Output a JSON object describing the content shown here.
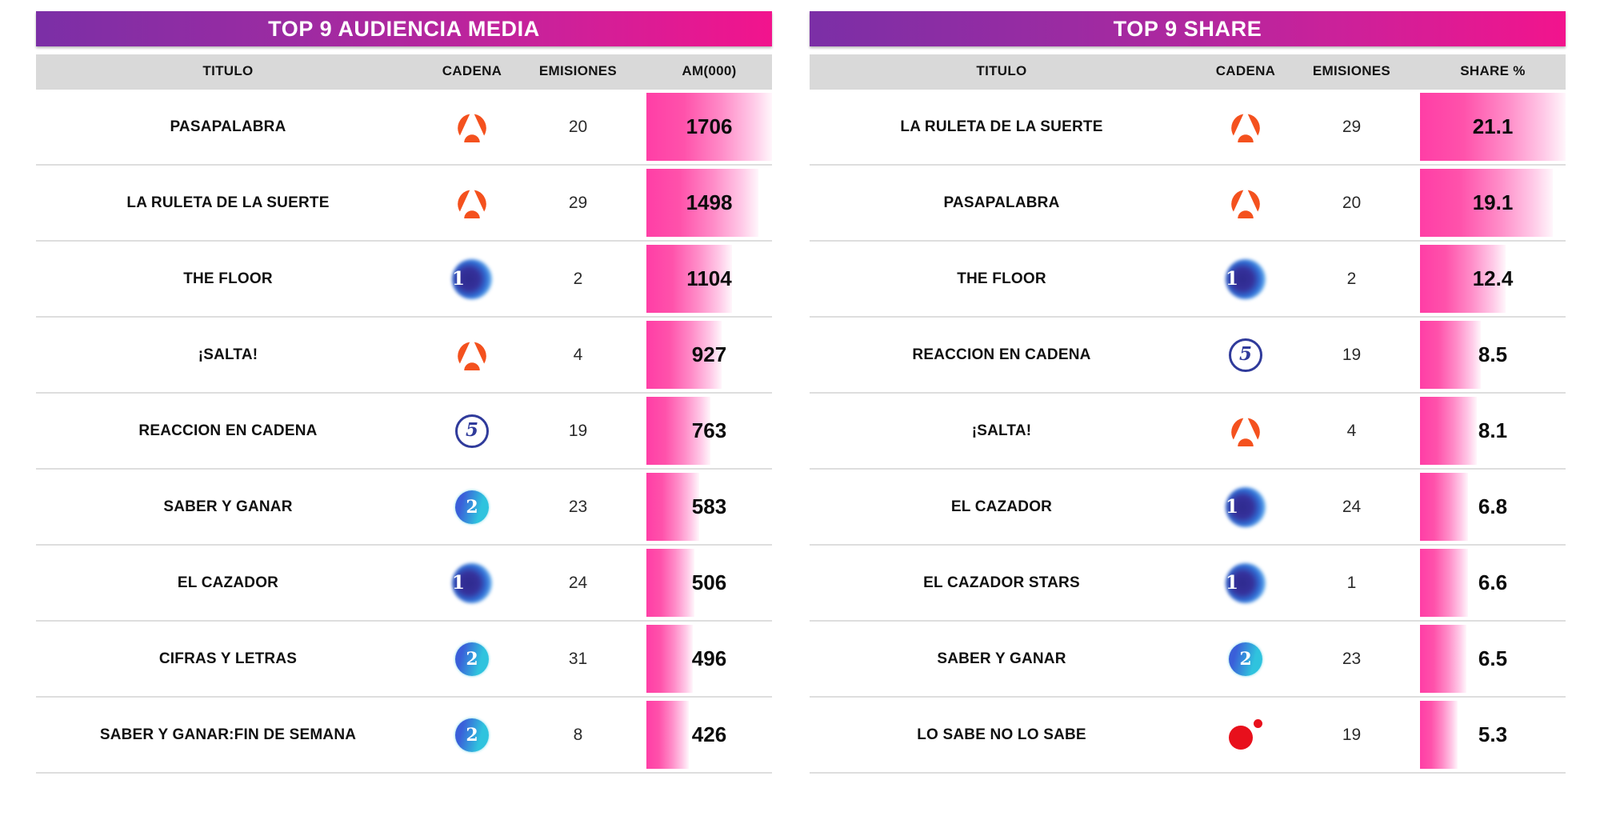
{
  "colors": {
    "header_gradient_start": "#7B2FA6",
    "header_gradient_end": "#F2148D",
    "column_header_bg": "#D9D9D9",
    "bar_pink": "#FF3EA6",
    "bar_fade": "#FFF6FB",
    "row_line": "#DEDEDE",
    "antena3_orange": "#F4511E",
    "telecinco_navy": "#303B9B",
    "la1_blue": "#2F6FD6",
    "la2_cyan": "#2FC3DE",
    "reddot_red": "#E8101C"
  },
  "channels": {
    "antena3": "Antena 3",
    "la1": "La 1",
    "telecinco": "Telecinco",
    "la2": "La 2",
    "reddot": "Red dot channel"
  },
  "tables": [
    {
      "title": "TOP 9 AUDIENCIA MEDIA",
      "columns": {
        "titulo": "TITULO",
        "cadena": "CADENA",
        "emisiones": "EMISIONES",
        "valor": "AM(000)"
      },
      "rows": [
        {
          "titulo": "PASAPALABRA",
          "cadena": "antena3",
          "emisiones": "20",
          "valor": "1706",
          "bar_pct": 100
        },
        {
          "titulo": "LA RULETA DE LA SUERTE",
          "cadena": "antena3",
          "emisiones": "29",
          "valor": "1498",
          "bar_pct": 89
        },
        {
          "titulo": "THE FLOOR",
          "cadena": "la1",
          "emisiones": "2",
          "valor": "1104",
          "bar_pct": 68
        },
        {
          "titulo": "¡SALTA!",
          "cadena": "antena3",
          "emisiones": "4",
          "valor": "927",
          "bar_pct": 60
        },
        {
          "titulo": "REACCION EN CADENA",
          "cadena": "telecinco",
          "emisiones": "19",
          "valor": "763",
          "bar_pct": 51
        },
        {
          "titulo": "SABER Y GANAR",
          "cadena": "la2",
          "emisiones": "23",
          "valor": "583",
          "bar_pct": 42
        },
        {
          "titulo": "EL CAZADOR",
          "cadena": "la1",
          "emisiones": "24",
          "valor": "506",
          "bar_pct": 38
        },
        {
          "titulo": "CIFRAS Y LETRAS",
          "cadena": "la2",
          "emisiones": "31",
          "valor": "496",
          "bar_pct": 37
        },
        {
          "titulo": "SABER Y GANAR:FIN DE SEMANA",
          "cadena": "la2",
          "emisiones": "8",
          "valor": "426",
          "bar_pct": 34
        }
      ]
    },
    {
      "title": "TOP 9 SHARE",
      "columns": {
        "titulo": "TITULO",
        "cadena": "CADENA",
        "emisiones": "EMISIONES",
        "valor": "SHARE %"
      },
      "rows": [
        {
          "titulo": "LA RULETA DE LA SUERTE",
          "cadena": "antena3",
          "emisiones": "29",
          "valor": "21.1",
          "bar_pct": 100
        },
        {
          "titulo": "PASAPALABRA",
          "cadena": "antena3",
          "emisiones": "20",
          "valor": "19.1",
          "bar_pct": 91
        },
        {
          "titulo": "THE FLOOR",
          "cadena": "la1",
          "emisiones": "2",
          "valor": "12.4",
          "bar_pct": 59
        },
        {
          "titulo": "REACCION EN CADENA",
          "cadena": "telecinco",
          "emisiones": "19",
          "valor": "8.5",
          "bar_pct": 42
        },
        {
          "titulo": "¡SALTA!",
          "cadena": "antena3",
          "emisiones": "4",
          "valor": "8.1",
          "bar_pct": 39
        },
        {
          "titulo": "EL CAZADOR",
          "cadena": "la1",
          "emisiones": "24",
          "valor": "6.8",
          "bar_pct": 33
        },
        {
          "titulo": "EL CAZADOR STARS",
          "cadena": "la1",
          "emisiones": "1",
          "valor": "6.6",
          "bar_pct": 33
        },
        {
          "titulo": "SABER Y GANAR",
          "cadena": "la2",
          "emisiones": "23",
          "valor": "6.5",
          "bar_pct": 32
        },
        {
          "titulo": "LO SABE NO LO SABE",
          "cadena": "reddot",
          "emisiones": "19",
          "valor": "5.3",
          "bar_pct": 26
        }
      ]
    }
  ],
  "chart_data": [
    {
      "type": "table",
      "title": "TOP 9 AUDIENCIA MEDIA",
      "columns": [
        "TITULO",
        "CADENA",
        "EMISIONES",
        "AM(000)"
      ],
      "bar_column": "AM(000)",
      "bar_scale": {
        "max": 1706
      },
      "rows": [
        [
          "PASAPALABRA",
          "Antena 3",
          20,
          1706
        ],
        [
          "LA RULETA DE LA SUERTE",
          "Antena 3",
          29,
          1498
        ],
        [
          "THE FLOOR",
          "La 1",
          2,
          1104
        ],
        [
          "¡SALTA!",
          "Antena 3",
          4,
          927
        ],
        [
          "REACCION EN CADENA",
          "Telecinco",
          19,
          763
        ],
        [
          "SABER Y GANAR",
          "La 2",
          23,
          583
        ],
        [
          "EL CAZADOR",
          "La 1",
          24,
          506
        ],
        [
          "CIFRAS Y LETRAS",
          "La 2",
          31,
          496
        ],
        [
          "SABER Y GANAR:FIN DE SEMANA",
          "La 2",
          8,
          426
        ]
      ]
    },
    {
      "type": "table",
      "title": "TOP 9 SHARE",
      "columns": [
        "TITULO",
        "CADENA",
        "EMISIONES",
        "SHARE %"
      ],
      "bar_column": "SHARE %",
      "bar_scale": {
        "max": 21.1
      },
      "rows": [
        [
          "LA RULETA DE LA SUERTE",
          "Antena 3",
          29,
          21.1
        ],
        [
          "PASAPALABRA",
          "Antena 3",
          20,
          19.1
        ],
        [
          "THE FLOOR",
          "La 1",
          2,
          12.4
        ],
        [
          "REACCION EN CADENA",
          "Telecinco",
          19,
          8.5
        ],
        [
          "¡SALTA!",
          "Antena 3",
          4,
          8.1
        ],
        [
          "EL CAZADOR",
          "La 1",
          24,
          6.8
        ],
        [
          "EL CAZADOR STARS",
          "La 1",
          1,
          6.6
        ],
        [
          "SABER Y GANAR",
          "La 2",
          23,
          6.5
        ],
        [
          "LO SABE NO LO SABE",
          "Red dot channel",
          19,
          5.3
        ]
      ]
    }
  ]
}
